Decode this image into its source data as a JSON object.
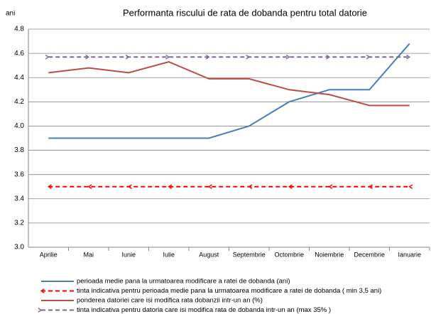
{
  "chart_data": {
    "type": "line",
    "title": "Performanta riscului de rata de dobanda pentru total datorie",
    "y_label": "ani",
    "categories": [
      "Aprilie",
      "Mai",
      "Iunie",
      "Iulie",
      "August",
      "Septembrie",
      "Octombrie",
      "Noiembrie",
      "Decembrie",
      "Ianuarie"
    ],
    "series": [
      {
        "name": "perioada medie pana la urmatoarea modificare a ratei de dobanda (ani)",
        "color": "#4a7ebb",
        "dashed": false,
        "values": [
          3.9,
          3.9,
          3.9,
          3.9,
          3.9,
          4.0,
          4.2,
          4.3,
          4.3,
          4.68
        ]
      },
      {
        "name": "tinta indicativa pentru perioada medie pana la urmatoarea modificare a ratei de dobanda ( min 3,5 ani)",
        "color": "#ff0000",
        "dashed": true,
        "values": [
          3.5,
          3.5,
          3.5,
          3.5,
          3.5,
          3.5,
          3.5,
          3.5,
          3.5,
          3.5
        ]
      },
      {
        "name": "ponderea datoriei care isi modifica rata dobanzii intr-un an (%)",
        "color": "#be4b48",
        "dashed": false,
        "values": [
          4.44,
          4.48,
          4.44,
          4.53,
          4.39,
          4.39,
          4.3,
          4.26,
          4.17,
          4.17
        ]
      },
      {
        "name": "tinta indicativa pentru datoria care isi modifica rata de dobanda intr-un an (max 35% )",
        "color": "#8064a2",
        "dashed": true,
        "values": [
          4.57,
          4.57,
          4.57,
          4.57,
          4.57,
          4.57,
          4.57,
          4.57,
          4.57,
          4.57
        ]
      }
    ],
    "ylim": [
      3.0,
      4.8
    ],
    "yticks": [
      {
        "value": 3.0,
        "label": "3.0"
      },
      {
        "value": 3.2,
        "label": "3.2"
      },
      {
        "value": 3.4,
        "label": "3.4"
      },
      {
        "value": 3.6,
        "label": "3.6"
      },
      {
        "value": 3.8,
        "label": "3.8"
      },
      {
        "value": 4.0,
        "label": "4.0"
      },
      {
        "value": 4.2,
        "label": "4.2"
      },
      {
        "value": 4.4,
        "label": "4.4"
      },
      {
        "value": 4.6,
        "label": "4.6"
      },
      {
        "value": 4.8,
        "label": "4.8"
      }
    ],
    "grid": true
  }
}
